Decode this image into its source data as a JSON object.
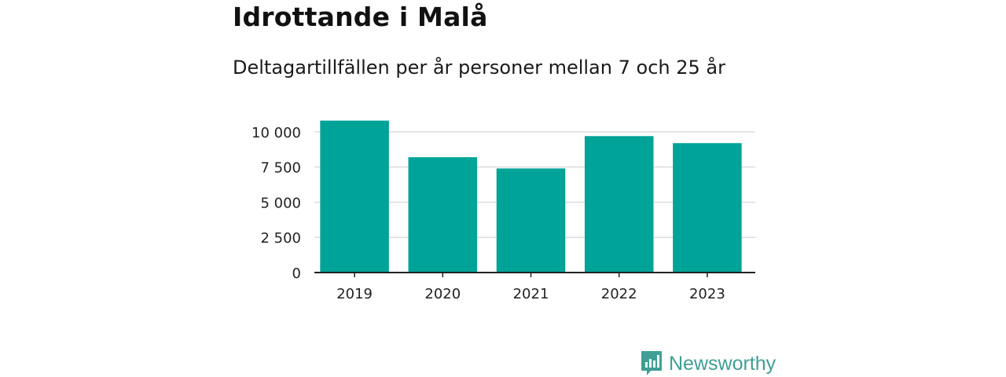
{
  "title": "Idrottande i Malå",
  "subtitle": "Deltagartillfällen per år personer mellan 7 och 25 år",
  "brand": {
    "name": "Newsworthy",
    "icon": "newsworthy-logo-icon",
    "color": "#3f9f94"
  },
  "chart_data": {
    "type": "bar",
    "categories": [
      "2019",
      "2020",
      "2021",
      "2022",
      "2023"
    ],
    "values": [
      10800,
      8200,
      7400,
      9700,
      9200
    ],
    "yticks": [
      0,
      2500,
      5000,
      7500,
      10000
    ],
    "ytick_labels": [
      "0",
      "2 500",
      "5 000",
      "7 500",
      "10 000"
    ],
    "ylim": [
      0,
      11000
    ],
    "bar_color": "#00a398",
    "grid": true,
    "xlabel": "",
    "ylabel": ""
  }
}
